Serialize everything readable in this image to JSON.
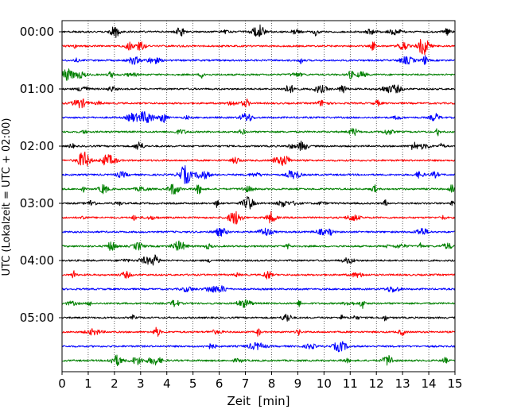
{
  "chart_data": {
    "type": "line",
    "subtype": "helicorder",
    "title": "",
    "xlabel": "Zeit  [min]",
    "ylabel": "UTC (Lokalzeit = UTC + 02:00)",
    "xlim": [
      0,
      15
    ],
    "x_ticks": [
      0,
      1,
      2,
      3,
      4,
      5,
      6,
      7,
      8,
      9,
      10,
      11,
      12,
      13,
      14,
      15
    ],
    "x_tick_labels": [
      "0",
      "1",
      "2",
      "3",
      "4",
      "5",
      "6",
      "7",
      "8",
      "9",
      "10",
      "11",
      "12",
      "13",
      "14",
      "15"
    ],
    "grid": "vertical dotted",
    "legend": "none",
    "row_duration_min": 15,
    "row_count": 24,
    "row_colors": [
      "#000000",
      "#ff0000",
      "#0000ff",
      "#008000"
    ],
    "y_tick_labels": [
      {
        "label": "00:00",
        "row": 0
      },
      {
        "label": "01:00",
        "row": 4
      },
      {
        "label": "02:00",
        "row": 8
      },
      {
        "label": "03:00",
        "row": 12
      },
      {
        "label": "04:00",
        "row": 16
      },
      {
        "label": "05:00",
        "row": 20
      }
    ],
    "series": [
      {
        "row": 0,
        "start": "00:00",
        "color": "#000000"
      },
      {
        "row": 1,
        "start": "00:15",
        "color": "#ff0000"
      },
      {
        "row": 2,
        "start": "00:30",
        "color": "#0000ff"
      },
      {
        "row": 3,
        "start": "00:45",
        "color": "#008000"
      },
      {
        "row": 4,
        "start": "01:00",
        "color": "#000000"
      },
      {
        "row": 5,
        "start": "01:15",
        "color": "#ff0000"
      },
      {
        "row": 6,
        "start": "01:30",
        "color": "#0000ff"
      },
      {
        "row": 7,
        "start": "01:45",
        "color": "#008000"
      },
      {
        "row": 8,
        "start": "02:00",
        "color": "#000000"
      },
      {
        "row": 9,
        "start": "02:15",
        "color": "#ff0000"
      },
      {
        "row": 10,
        "start": "02:30",
        "color": "#0000ff"
      },
      {
        "row": 11,
        "start": "02:45",
        "color": "#008000"
      },
      {
        "row": 12,
        "start": "03:00",
        "color": "#000000"
      },
      {
        "row": 13,
        "start": "03:15",
        "color": "#ff0000"
      },
      {
        "row": 14,
        "start": "03:30",
        "color": "#0000ff"
      },
      {
        "row": 15,
        "start": "03:45",
        "color": "#008000"
      },
      {
        "row": 16,
        "start": "04:00",
        "color": "#000000"
      },
      {
        "row": 17,
        "start": "04:15",
        "color": "#ff0000"
      },
      {
        "row": 18,
        "start": "04:30",
        "color": "#0000ff"
      },
      {
        "row": 19,
        "start": "04:45",
        "color": "#008000"
      },
      {
        "row": 20,
        "start": "05:00",
        "color": "#000000"
      },
      {
        "row": 21,
        "start": "05:15",
        "color": "#ff0000"
      },
      {
        "row": 22,
        "start": "05:30",
        "color": "#0000ff"
      },
      {
        "row": 23,
        "start": "05:45",
        "color": "#008000"
      }
    ]
  }
}
